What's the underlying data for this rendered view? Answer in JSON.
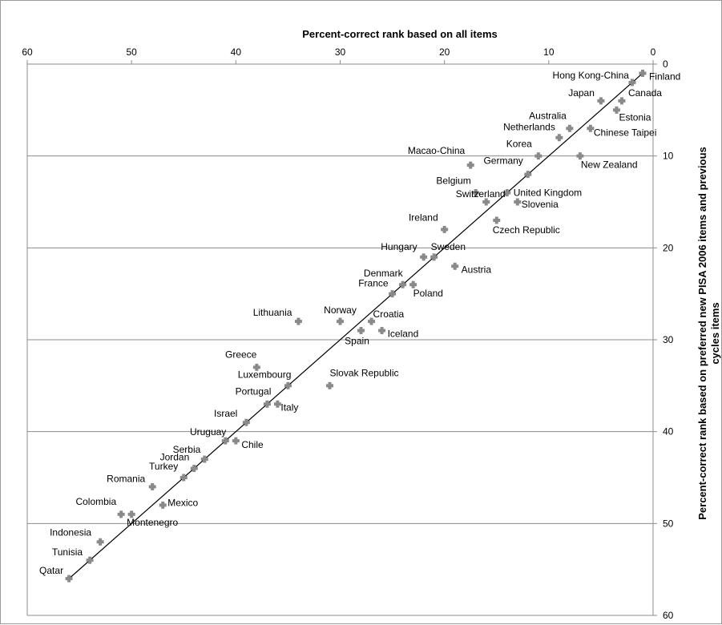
{
  "chart_data": {
    "type": "scatter",
    "title": "Percent-correct rank based on all items",
    "xlabel": "Percent-correct rank based on all items",
    "ylabel_lines": [
      "Percent-correct rank based on preferred new PISA 2006 items and previous",
      "cycles items"
    ],
    "xlim": [
      60,
      0
    ],
    "ylim": [
      0,
      60
    ],
    "x_reversed": true,
    "y_reversed": true,
    "x_axis_position": "top",
    "y_axis_position": "right",
    "x_ticks": [
      60,
      50,
      40,
      30,
      20,
      10,
      0
    ],
    "y_ticks": [
      0,
      10,
      20,
      30,
      40,
      50,
      60
    ],
    "grid": "horizontal major gridlines",
    "trendline": {
      "from": [
        56,
        56
      ],
      "to": [
        1,
        1
      ]
    },
    "marker_color": "#8a8a8a",
    "points": [
      {
        "label": "Finland",
        "x": 1,
        "y": 1
      },
      {
        "label": "Hong Kong-China",
        "x": 2,
        "y": 2
      },
      {
        "label": "Canada",
        "x": 3,
        "y": 4
      },
      {
        "label": "Japan",
        "x": 5,
        "y": 4
      },
      {
        "label": "Estonia",
        "x": 3.5,
        "y": 5
      },
      {
        "label": "Australia",
        "x": 8,
        "y": 7
      },
      {
        "label": "Chinese Taipei",
        "x": 6,
        "y": 7
      },
      {
        "label": "Netherlands",
        "x": 9,
        "y": 8
      },
      {
        "label": "Korea",
        "x": 11,
        "y": 10
      },
      {
        "label": "New Zealand",
        "x": 7,
        "y": 10
      },
      {
        "label": "Macao-China",
        "x": 17.5,
        "y": 11
      },
      {
        "label": "Germany",
        "x": 12,
        "y": 12
      },
      {
        "label": "Belgium",
        "x": 17,
        "y": 14
      },
      {
        "label": "United Kingdom",
        "x": 14,
        "y": 14
      },
      {
        "label": "Switzerland",
        "x": 16,
        "y": 15
      },
      {
        "label": "Slovenia",
        "x": 13,
        "y": 15
      },
      {
        "label": "Czech Republic",
        "x": 15,
        "y": 17
      },
      {
        "label": "Ireland",
        "x": 20,
        "y": 18
      },
      {
        "label": "Hungary",
        "x": 22,
        "y": 21
      },
      {
        "label": "Sweden",
        "x": 21,
        "y": 21
      },
      {
        "label": "Austria",
        "x": 19,
        "y": 22
      },
      {
        "label": "Denmark",
        "x": 24,
        "y": 24
      },
      {
        "label": "Poland",
        "x": 23,
        "y": 24
      },
      {
        "label": "France",
        "x": 25,
        "y": 25
      },
      {
        "label": "Lithuania",
        "x": 34,
        "y": 28
      },
      {
        "label": "Norway",
        "x": 30,
        "y": 28
      },
      {
        "label": "Croatia",
        "x": 27,
        "y": 28
      },
      {
        "label": "Spain",
        "x": 28,
        "y": 29
      },
      {
        "label": "Iceland",
        "x": 26,
        "y": 29
      },
      {
        "label": "Greece",
        "x": 38,
        "y": 33
      },
      {
        "label": "Luxembourg",
        "x": 35,
        "y": 35
      },
      {
        "label": "Slovak Republic",
        "x": 31,
        "y": 35
      },
      {
        "label": "Portugal",
        "x": 37,
        "y": 37
      },
      {
        "label": "Italy",
        "x": 36,
        "y": 37
      },
      {
        "label": "Israel",
        "x": 39,
        "y": 39
      },
      {
        "label": "Uruguay",
        "x": 41,
        "y": 41
      },
      {
        "label": "Chile",
        "x": 40,
        "y": 41
      },
      {
        "label": "Serbia",
        "x": 43,
        "y": 43
      },
      {
        "label": "Jordan",
        "x": 44,
        "y": 44
      },
      {
        "label": "Turkey",
        "x": 45,
        "y": 45
      },
      {
        "label": "Romania",
        "x": 48,
        "y": 46
      },
      {
        "label": "Mexico",
        "x": 47,
        "y": 48
      },
      {
        "label": "Colombia",
        "x": 51,
        "y": 49
      },
      {
        "label": "Montenegro",
        "x": 50,
        "y": 49
      },
      {
        "label": "Indonesia",
        "x": 53,
        "y": 52
      },
      {
        "label": "Tunisia",
        "x": 54,
        "y": 54
      },
      {
        "label": "Qatar",
        "x": 56,
        "y": 56
      }
    ]
  }
}
